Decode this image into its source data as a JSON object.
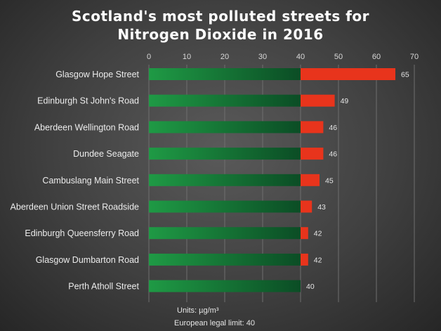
{
  "chart_data": {
    "type": "bar",
    "orientation": "horizontal",
    "title_lines": [
      "Scotland's most polluted streets for",
      "Nitrogen Dioxide in 2016"
    ],
    "categories": [
      "Glasgow Hope Street",
      "Edinburgh St John's Road",
      "Aberdeen Wellington Road",
      "Dundee Seagate",
      "Cambuslang Main Street",
      "Aberdeen Union Street Roadside",
      "Edinburgh Queensferry Road",
      "Glasgow Dumbarton Road",
      "Perth Atholl Street"
    ],
    "values": [
      65,
      49,
      46,
      46,
      45,
      43,
      42,
      42,
      40
    ],
    "xlim": [
      0,
      70
    ],
    "xticks": [
      0,
      10,
      20,
      30,
      40,
      50,
      60,
      70
    ],
    "xaxis_position": "top",
    "legal_limit": 40,
    "units_label": "Units: µg/m³",
    "limit_label": "European legal limit: 40",
    "grid": true,
    "colors": {
      "below_limit_start": "#1f9a45",
      "below_limit_end": "#0b4d25",
      "above_limit": "#e8341c",
      "grid": "#6e6e6e",
      "text": "#ececec"
    }
  }
}
